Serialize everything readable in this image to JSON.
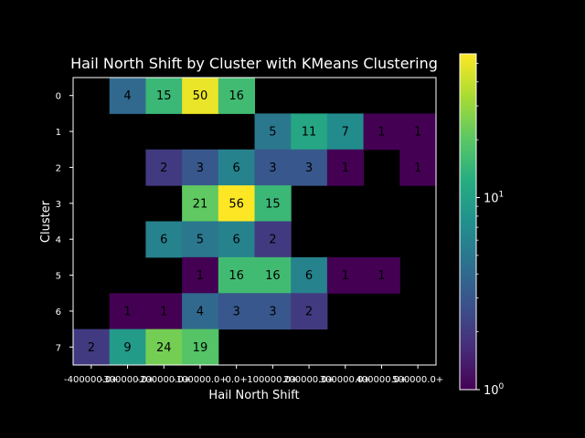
{
  "colors": {
    "background": "#000000",
    "foreground": "#ffffff",
    "colormap": "viridis"
  },
  "chart_data": {
    "type": "heatmap",
    "title": "Hail North Shift by Cluster with KMeans Clustering",
    "xlabel": "Hail North Shift",
    "ylabel": "Cluster",
    "x_tick_labels": [
      "-400000.0+",
      "-300000.0+",
      "-200000.0+",
      "-100000.0+",
      "0.0+",
      "100000.0+",
      "200000.0+",
      "300000.0+",
      "400000.0+",
      "500000.0+"
    ],
    "y_tick_labels": [
      "0",
      "1",
      "2",
      "3",
      "4",
      "5",
      "6",
      "7"
    ],
    "color_scale": "log",
    "colorbar_ticks": [
      {
        "value": 1,
        "label": "10^0"
      },
      {
        "value": 10,
        "label": "10^1"
      }
    ],
    "vmin": 1,
    "vmax": 56,
    "grid": false,
    "cells": [
      [
        null,
        4,
        15,
        50,
        16,
        null,
        null,
        null,
        null,
        null
      ],
      [
        null,
        null,
        null,
        null,
        null,
        5,
        11,
        7,
        1,
        1
      ],
      [
        null,
        null,
        2,
        3,
        6,
        3,
        3,
        1,
        null,
        1
      ],
      [
        null,
        null,
        null,
        21,
        56,
        15,
        null,
        null,
        null,
        null
      ],
      [
        null,
        null,
        6,
        5,
        6,
        2,
        null,
        null,
        null,
        null
      ],
      [
        null,
        null,
        null,
        1,
        16,
        16,
        6,
        1,
        1,
        null
      ],
      [
        null,
        1,
        1,
        4,
        3,
        3,
        2,
        null,
        null,
        null
      ],
      [
        2,
        9,
        24,
        19,
        null,
        null,
        null,
        null,
        null,
        null
      ]
    ]
  }
}
